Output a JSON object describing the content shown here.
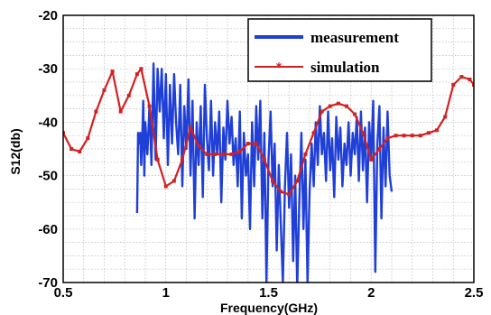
{
  "chart_data": {
    "type": "line",
    "title": "",
    "xlabel": "Frequency(GHz)",
    "ylabel": "S12(db)",
    "xlim": [
      0.5,
      2.5
    ],
    "ylim": [
      -70,
      -20
    ],
    "x_ticks": [
      "0.5",
      "1",
      "1.5",
      "2",
      "2.5"
    ],
    "y_ticks": [
      "-20",
      "-30",
      "-40",
      "-50",
      "-60",
      "-70"
    ],
    "grid": true,
    "legend_position": "top-right",
    "series": [
      {
        "name": "measurement",
        "color": "#1f3fd6",
        "marker": "none",
        "x": [
          0.86,
          0.865,
          0.87,
          0.875,
          0.88,
          0.885,
          0.89,
          0.895,
          0.9,
          0.91,
          0.92,
          0.93,
          0.94,
          0.95,
          0.96,
          0.97,
          0.98,
          0.99,
          1.0,
          1.01,
          1.02,
          1.03,
          1.04,
          1.05,
          1.06,
          1.07,
          1.08,
          1.09,
          1.1,
          1.11,
          1.12,
          1.13,
          1.14,
          1.15,
          1.16,
          1.17,
          1.18,
          1.19,
          1.2,
          1.21,
          1.22,
          1.23,
          1.24,
          1.25,
          1.26,
          1.27,
          1.28,
          1.29,
          1.3,
          1.31,
          1.32,
          1.33,
          1.34,
          1.35,
          1.36,
          1.37,
          1.38,
          1.39,
          1.4,
          1.41,
          1.42,
          1.43,
          1.44,
          1.45,
          1.46,
          1.47,
          1.48,
          1.49,
          1.5,
          1.51,
          1.52,
          1.53,
          1.54,
          1.55,
          1.56,
          1.57,
          1.58,
          1.59,
          1.6,
          1.61,
          1.62,
          1.63,
          1.64,
          1.65,
          1.66,
          1.67,
          1.68,
          1.69,
          1.7,
          1.71,
          1.72,
          1.73,
          1.74,
          1.75,
          1.76,
          1.77,
          1.78,
          1.79,
          1.8,
          1.81,
          1.82,
          1.83,
          1.84,
          1.85,
          1.86,
          1.87,
          1.88,
          1.89,
          1.9,
          1.91,
          1.92,
          1.93,
          1.94,
          1.95,
          1.96,
          1.97,
          1.98,
          1.99,
          2.0,
          2.01,
          2.02,
          2.03,
          2.04,
          2.05,
          2.06,
          2.07,
          2.08,
          2.09,
          2.1
        ],
        "y": [
          -57,
          -42,
          -44,
          -42,
          -48,
          -43,
          -36,
          -50,
          -40,
          -46,
          -37,
          -48,
          -29,
          -47,
          -30,
          -38,
          -30,
          -43,
          -31,
          -48,
          -33,
          -44,
          -31,
          -40,
          -46,
          -33,
          -52,
          -37,
          -45,
          -32,
          -50,
          -36,
          -58,
          -40,
          -48,
          -37,
          -54,
          -33,
          -43,
          -49,
          -36,
          -50,
          -40,
          -46,
          -38,
          -55,
          -41,
          -47,
          -36,
          -44,
          -39,
          -48,
          -43,
          -52,
          -38,
          -58,
          -42,
          -50,
          -46,
          -60,
          -40,
          -52,
          -37,
          -47,
          -36,
          -58,
          -42,
          -70,
          -47,
          -38,
          -52,
          -44,
          -64,
          -48,
          -59,
          -70,
          -52,
          -42,
          -56,
          -46,
          -66,
          -50,
          -71,
          -55,
          -42,
          -60,
          -47,
          -70,
          -53,
          -44,
          -52,
          -40,
          -48,
          -37,
          -46,
          -42,
          -51,
          -38,
          -49,
          -43,
          -54,
          -39,
          -47,
          -41,
          -52,
          -44,
          -48,
          -40,
          -50,
          -42,
          -46,
          -39,
          -51,
          -38,
          -49,
          -41,
          -55,
          -40,
          -47,
          -36,
          -68,
          -44,
          -37,
          -58,
          -41,
          -52,
          -38,
          -50,
          -53
        ]
      },
      {
        "name": "simulation",
        "color": "#d42020",
        "marker": "*",
        "x": [
          0.5,
          0.54,
          0.58,
          0.62,
          0.66,
          0.7,
          0.74,
          0.78,
          0.82,
          0.86,
          0.88,
          0.92,
          0.96,
          1.0,
          1.04,
          1.08,
          1.12,
          1.16,
          1.2,
          1.24,
          1.28,
          1.32,
          1.36,
          1.4,
          1.44,
          1.48,
          1.52,
          1.56,
          1.6,
          1.64,
          1.68,
          1.72,
          1.76,
          1.8,
          1.84,
          1.88,
          1.92,
          1.96,
          2.0,
          2.04,
          2.08,
          2.12,
          2.16,
          2.2,
          2.24,
          2.28,
          2.32,
          2.36,
          2.4,
          2.44,
          2.48,
          2.5
        ],
        "y": [
          -42,
          -45,
          -45.5,
          -43,
          -38,
          -34,
          -30.5,
          -38,
          -35,
          -31,
          -30,
          -37,
          -47,
          -52,
          -51,
          -47,
          -41,
          -44.5,
          -46,
          -46,
          -46,
          -46,
          -45.5,
          -44,
          -44,
          -47,
          -51,
          -53,
          -53.5,
          -51,
          -46,
          -42,
          -38,
          -37,
          -36.5,
          -37,
          -38.5,
          -42,
          -47,
          -45,
          -43,
          -42.5,
          -42.5,
          -42.5,
          -42.5,
          -42,
          -41.5,
          -39,
          -33,
          -31.5,
          -32,
          -33
        ]
      }
    ]
  }
}
